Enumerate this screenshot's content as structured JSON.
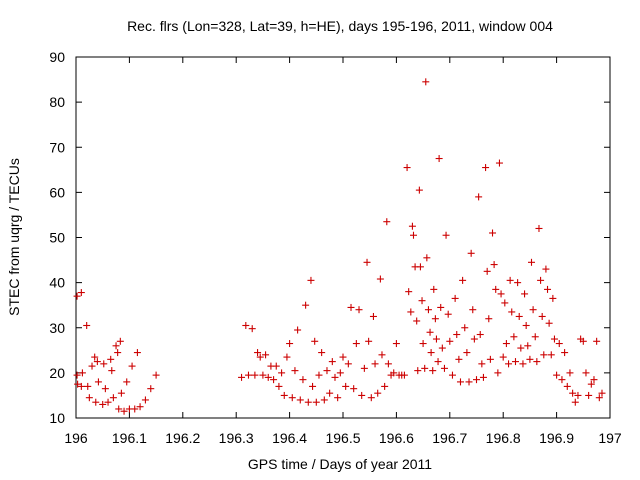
{
  "chart_data": {
    "type": "scatter",
    "title": "Rec. flrs (Lon=328, Lat=39, h=HE), days 195-196, 2011, window 004",
    "xlabel": "GPS time / Days of year 2011",
    "ylabel": "STEC from uqrg / TECUs",
    "xlim": [
      196,
      197
    ],
    "ylim": [
      10,
      90
    ],
    "xticks": [
      196,
      196.1,
      196.2,
      196.3,
      196.4,
      196.5,
      196.6,
      196.7,
      196.8,
      196.9,
      197
    ],
    "xtick_labels": [
      "196",
      "196.1",
      "196.2",
      "196.3",
      "196.4",
      "196.5",
      "196.6",
      "196.7",
      "196.8",
      "196.9",
      "197"
    ],
    "yticks": [
      10,
      20,
      30,
      40,
      50,
      60,
      70,
      80,
      90
    ],
    "ytick_labels": [
      "10",
      "20",
      "30",
      "40",
      "50",
      "60",
      "70",
      "80",
      "90"
    ],
    "marker": "+",
    "series": [
      {
        "name": "STEC",
        "color": "#cc0000",
        "points": [
          [
            196.002,
            37.0
          ],
          [
            196.002,
            19.5
          ],
          [
            196.003,
            17.5
          ],
          [
            196.01,
            37.8
          ],
          [
            196.01,
            17.0
          ],
          [
            196.012,
            20.0
          ],
          [
            196.02,
            30.5
          ],
          [
            196.022,
            17.0
          ],
          [
            196.025,
            14.5
          ],
          [
            196.03,
            21.5
          ],
          [
            196.035,
            23.5
          ],
          [
            196.037,
            13.5
          ],
          [
            196.04,
            22.5
          ],
          [
            196.042,
            18.0
          ],
          [
            196.05,
            13.0
          ],
          [
            196.052,
            22.0
          ],
          [
            196.055,
            16.5
          ],
          [
            196.06,
            13.5
          ],
          [
            196.065,
            23.0
          ],
          [
            196.067,
            20.5
          ],
          [
            196.07,
            14.5
          ],
          [
            196.075,
            26.0
          ],
          [
            196.078,
            24.5
          ],
          [
            196.08,
            12.0
          ],
          [
            196.083,
            27.0
          ],
          [
            196.085,
            15.5
          ],
          [
            196.09,
            11.5
          ],
          [
            196.095,
            18.0
          ],
          [
            196.1,
            12.0
          ],
          [
            196.105,
            21.5
          ],
          [
            196.11,
            12.0
          ],
          [
            196.115,
            24.5
          ],
          [
            196.12,
            12.5
          ],
          [
            196.13,
            14.0
          ],
          [
            196.14,
            16.5
          ],
          [
            196.15,
            19.5
          ],
          [
            196.31,
            19.0
          ],
          [
            196.318,
            30.5
          ],
          [
            196.323,
            19.5
          ],
          [
            196.33,
            29.8
          ],
          [
            196.335,
            19.5
          ],
          [
            196.34,
            24.5
          ],
          [
            196.345,
            23.5
          ],
          [
            196.35,
            19.5
          ],
          [
            196.355,
            24.0
          ],
          [
            196.36,
            19.0
          ],
          [
            196.365,
            21.5
          ],
          [
            196.37,
            18.5
          ],
          [
            196.375,
            21.5
          ],
          [
            196.38,
            17.0
          ],
          [
            196.385,
            20.0
          ],
          [
            196.39,
            15.0
          ],
          [
            196.395,
            23.5
          ],
          [
            196.4,
            26.5
          ],
          [
            196.405,
            14.5
          ],
          [
            196.41,
            20.5
          ],
          [
            196.415,
            29.5
          ],
          [
            196.42,
            14.0
          ],
          [
            196.425,
            18.5
          ],
          [
            196.43,
            35.0
          ],
          [
            196.435,
            13.5
          ],
          [
            196.44,
            40.5
          ],
          [
            196.443,
            17.0
          ],
          [
            196.447,
            27.0
          ],
          [
            196.45,
            13.5
          ],
          [
            196.455,
            19.5
          ],
          [
            196.46,
            24.5
          ],
          [
            196.465,
            14.0
          ],
          [
            196.47,
            20.5
          ],
          [
            196.475,
            15.5
          ],
          [
            196.48,
            22.5
          ],
          [
            196.485,
            19.0
          ],
          [
            196.49,
            14.5
          ],
          [
            196.495,
            20.0
          ],
          [
            196.5,
            23.5
          ],
          [
            196.505,
            17.0
          ],
          [
            196.51,
            22.0
          ],
          [
            196.515,
            34.5
          ],
          [
            196.52,
            16.5
          ],
          [
            196.525,
            26.5
          ],
          [
            196.53,
            34.0
          ],
          [
            196.535,
            15.0
          ],
          [
            196.54,
            21.0
          ],
          [
            196.545,
            44.5
          ],
          [
            196.548,
            27.0
          ],
          [
            196.553,
            14.5
          ],
          [
            196.557,
            32.5
          ],
          [
            196.56,
            22.0
          ],
          [
            196.565,
            15.5
          ],
          [
            196.57,
            40.8
          ],
          [
            196.573,
            24.0
          ],
          [
            196.578,
            17.0
          ],
          [
            196.582,
            53.5
          ],
          [
            196.585,
            22.0
          ],
          [
            196.59,
            19.5
          ],
          [
            196.595,
            20.0
          ],
          [
            196.6,
            26.5
          ],
          [
            196.605,
            19.5
          ],
          [
            196.61,
            19.5
          ],
          [
            196.615,
            19.5
          ],
          [
            196.62,
            65.5
          ],
          [
            196.623,
            38.0
          ],
          [
            196.627,
            33.5
          ],
          [
            196.63,
            52.5
          ],
          [
            196.632,
            50.5
          ],
          [
            196.635,
            43.5
          ],
          [
            196.638,
            31.5
          ],
          [
            196.64,
            20.5
          ],
          [
            196.643,
            60.5
          ],
          [
            196.645,
            43.5
          ],
          [
            196.648,
            36.0
          ],
          [
            196.65,
            26.5
          ],
          [
            196.653,
            21.0
          ],
          [
            196.655,
            84.5
          ],
          [
            196.657,
            45.5
          ],
          [
            196.66,
            34.0
          ],
          [
            196.663,
            29.0
          ],
          [
            196.665,
            24.5
          ],
          [
            196.668,
            20.5
          ],
          [
            196.67,
            38.5
          ],
          [
            196.673,
            32.0
          ],
          [
            196.675,
            27.5
          ],
          [
            196.678,
            22.5
          ],
          [
            196.68,
            67.5
          ],
          [
            196.683,
            34.5
          ],
          [
            196.686,
            25.5
          ],
          [
            196.69,
            21.0
          ],
          [
            196.693,
            50.5
          ],
          [
            196.697,
            33.0
          ],
          [
            196.7,
            27.0
          ],
          [
            196.705,
            19.5
          ],
          [
            196.71,
            36.5
          ],
          [
            196.713,
            28.5
          ],
          [
            196.717,
            23.0
          ],
          [
            196.72,
            18.0
          ],
          [
            196.724,
            40.5
          ],
          [
            196.728,
            30.0
          ],
          [
            196.732,
            24.5
          ],
          [
            196.736,
            18.0
          ],
          [
            196.74,
            46.5
          ],
          [
            196.743,
            34.0
          ],
          [
            196.746,
            27.5
          ],
          [
            196.75,
            18.5
          ],
          [
            196.754,
            59.0
          ],
          [
            196.757,
            28.5
          ],
          [
            196.76,
            22.0
          ],
          [
            196.763,
            19.0
          ],
          [
            196.767,
            65.5
          ],
          [
            196.77,
            42.5
          ],
          [
            196.773,
            32.0
          ],
          [
            196.776,
            23.0
          ],
          [
            196.78,
            51.0
          ],
          [
            196.783,
            44.0
          ],
          [
            196.786,
            38.5
          ],
          [
            196.79,
            20.0
          ],
          [
            196.793,
            66.5
          ],
          [
            196.796,
            37.5
          ],
          [
            196.8,
            23.5
          ],
          [
            196.803,
            35.5
          ],
          [
            196.806,
            26.5
          ],
          [
            196.81,
            22.0
          ],
          [
            196.813,
            40.5
          ],
          [
            196.816,
            33.5
          ],
          [
            196.82,
            28.0
          ],
          [
            196.823,
            22.5
          ],
          [
            196.827,
            40.0
          ],
          [
            196.83,
            32.5
          ],
          [
            196.833,
            25.5
          ],
          [
            196.837,
            22.0
          ],
          [
            196.84,
            37.5
          ],
          [
            196.843,
            30.5
          ],
          [
            196.846,
            26.0
          ],
          [
            196.85,
            23.0
          ],
          [
            196.853,
            44.5
          ],
          [
            196.856,
            34.0
          ],
          [
            196.86,
            28.0
          ],
          [
            196.863,
            22.5
          ],
          [
            196.867,
            52.0
          ],
          [
            196.87,
            40.5
          ],
          [
            196.873,
            32.5
          ],
          [
            196.876,
            24.0
          ],
          [
            196.88,
            43.0
          ],
          [
            196.883,
            38.5
          ],
          [
            196.886,
            31.0
          ],
          [
            196.89,
            24.0
          ],
          [
            196.893,
            36.5
          ],
          [
            196.896,
            27.5
          ],
          [
            196.9,
            19.5
          ],
          [
            196.905,
            26.5
          ],
          [
            196.91,
            18.5
          ],
          [
            196.915,
            24.5
          ],
          [
            196.92,
            17.0
          ],
          [
            196.925,
            20.0
          ],
          [
            196.93,
            15.5
          ],
          [
            196.935,
            13.5
          ],
          [
            196.94,
            15.0
          ],
          [
            196.945,
            27.5
          ],
          [
            196.95,
            27.0
          ],
          [
            196.955,
            20.0
          ],
          [
            196.96,
            15.0
          ],
          [
            196.965,
            17.5
          ],
          [
            196.97,
            18.5
          ],
          [
            196.975,
            27.0
          ],
          [
            196.98,
            14.5
          ],
          [
            196.985,
            15.5
          ]
        ]
      }
    ]
  }
}
